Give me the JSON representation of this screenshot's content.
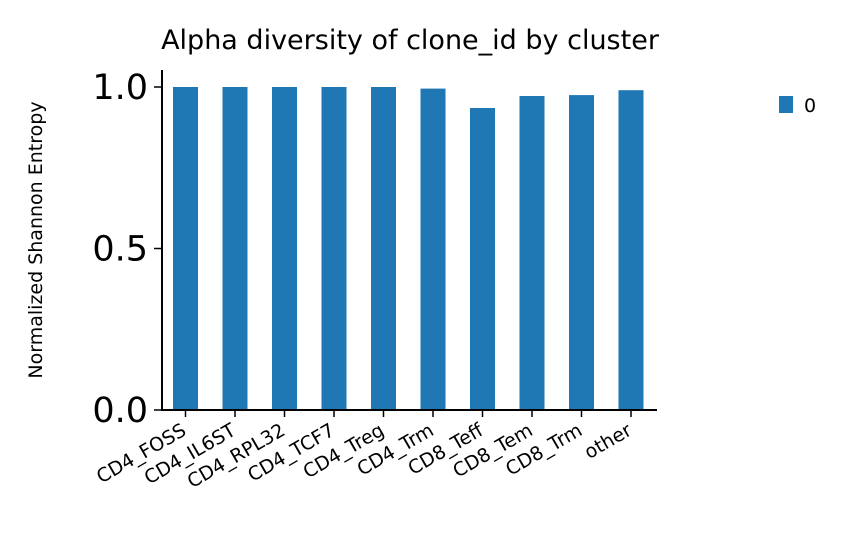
{
  "chart_data": {
    "type": "bar",
    "title": "Alpha diversity of clone_id by cluster",
    "xlabel": "",
    "ylabel": "Normalized Shannon Entropy",
    "categories": [
      "CD4_FOSS",
      "CD4_IL6ST",
      "CD4_RPL32",
      "CD4_TCF7",
      "CD4_Treg",
      "CD4_Trm",
      "CD8_Teff",
      "CD8_Tem",
      "CD8_Trm",
      "other"
    ],
    "series": [
      {
        "name": "0",
        "values": [
          1.0,
          1.0,
          1.0,
          1.0,
          1.0,
          0.995,
          0.935,
          0.972,
          0.975,
          0.99
        ]
      }
    ],
    "ylim": [
      0,
      1.05
    ],
    "yticks": [
      0.0,
      0.5,
      1.0
    ],
    "ytick_labels": [
      "0.0",
      "0.5",
      "1.0"
    ],
    "grid": false,
    "legend": "right",
    "colors": {
      "bar": "#1f77b4"
    }
  }
}
